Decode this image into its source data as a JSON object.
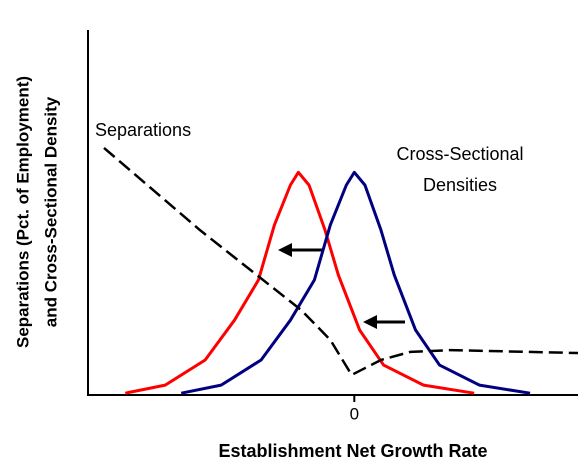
{
  "chart_data": {
    "type": "line",
    "y_label": [
      "Separations (Pct. of Employment)",
      "and Cross-Sectional Density"
    ],
    "x_label": "Establishment Net Growth Rate",
    "annotations": [
      "Separations",
      "Cross-Sectional",
      "Densities"
    ],
    "xlim": [
      -1,
      0.84
    ],
    "ylim": [
      0,
      100
    ],
    "xticks": [
      0
    ],
    "series": [
      {
        "color": "#ff0000",
        "dash": false,
        "x": [
          -0.86,
          -0.71,
          -0.56,
          -0.45,
          -0.36,
          -0.3,
          -0.24,
          -0.21,
          -0.17,
          -0.11,
          -0.06,
          0.02,
          0.11,
          0.26,
          0.45
        ],
        "values": [
          0.5,
          2.7,
          9.6,
          20.5,
          31.5,
          46.6,
          57.5,
          61,
          57.5,
          45.2,
          32.9,
          17.8,
          8.2,
          2.7,
          0.5
        ]
      },
      {
        "color": "#000080",
        "dash": false,
        "x": [
          -0.65,
          -0.5,
          -0.35,
          -0.24,
          -0.15,
          -0.09,
          -0.03,
          0,
          0.04,
          0.1,
          0.15,
          0.23,
          0.32,
          0.47,
          0.66
        ],
        "values": [
          0.5,
          2.7,
          9.6,
          20.5,
          31.5,
          46.6,
          57.5,
          61,
          57.5,
          45.2,
          32.9,
          17.8,
          8.2,
          2.7,
          0.5
        ]
      },
      {
        "color": "#000000",
        "dash": true,
        "x": [
          -0.94,
          -0.58,
          -0.2,
          -0.09,
          -0.01,
          0.1,
          0.21,
          0.36,
          0.84
        ],
        "values": [
          67.7,
          45.2,
          23.3,
          15.1,
          5.5,
          9.6,
          11.8,
          12.3,
          11.5
        ]
      }
    ]
  }
}
